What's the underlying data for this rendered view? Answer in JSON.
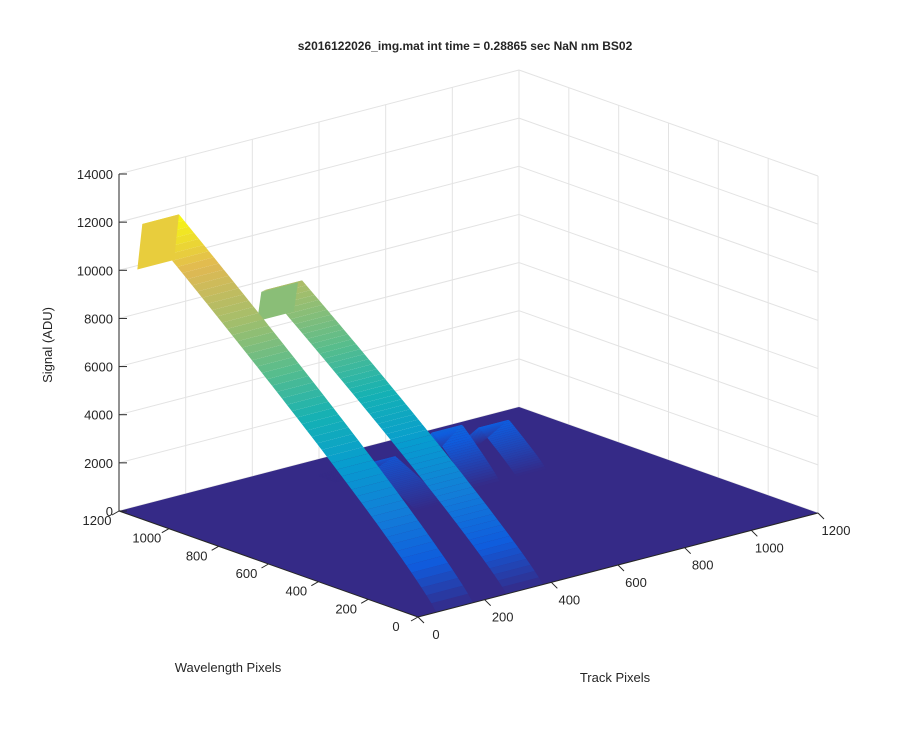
{
  "chart_data": {
    "type": "surface",
    "title": "s2016122026_img.mat int time = 0.28865 sec  NaN nm BS02",
    "xlabel": "Track Pixels",
    "ylabel": "Wavelength Pixels",
    "zlabel": "Signal (ADU)",
    "xlim": [
      0,
      1200
    ],
    "ylim": [
      0,
      1200
    ],
    "zlim": [
      0,
      14000
    ],
    "xticks": [
      "0",
      "200",
      "400",
      "600",
      "800",
      "1000",
      "1200"
    ],
    "yticks": [
      "0",
      "200",
      "400",
      "600",
      "800",
      "1000",
      "1200"
    ],
    "zticks": [
      "0",
      "2000",
      "4000",
      "6000",
      "8000",
      "10000",
      "12000",
      "14000"
    ],
    "grid": true,
    "colormap": "parula",
    "series": [
      {
        "x_center": 110,
        "y_range": [
          0,
          1200
        ],
        "peak_y": 1180,
        "peak_value": 11800
      },
      {
        "x_center": 320,
        "y_range": [
          0,
          1000
        ],
        "peak_y": 980,
        "peak_value": 9200
      },
      {
        "x_center": 560,
        "y_range": [
          700,
          1100
        ],
        "peak_y": 900,
        "peak_value": 1200
      },
      {
        "x_center": 760,
        "y_range": [
          750,
          1100
        ],
        "peak_y": 900,
        "peak_value": 1800
      },
      {
        "x_center": 900,
        "y_range": [
          750,
          1100
        ],
        "peak_y": 900,
        "peak_value": 1500
      }
    ]
  }
}
